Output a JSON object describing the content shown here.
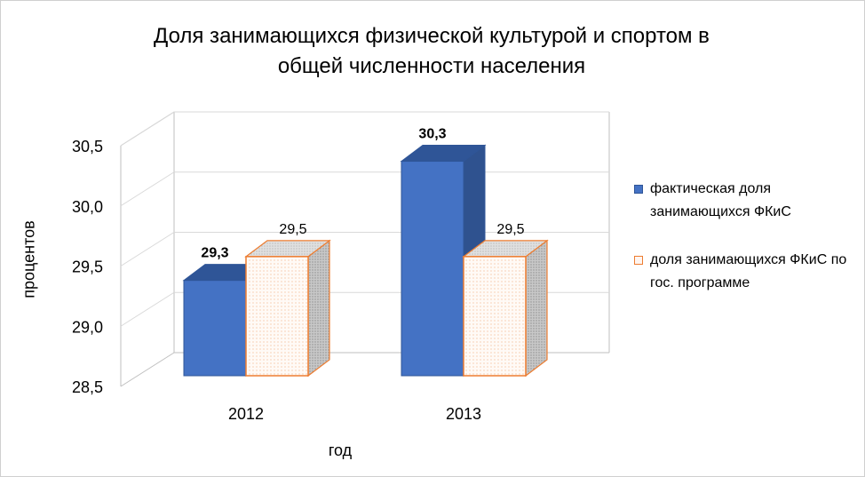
{
  "chart_data": {
    "type": "bar",
    "title": "Доля занимающихся физической культурой и спортом в\nобщей численности населения",
    "xlabel": "год",
    "ylabel": "процентов",
    "categories": [
      "2012",
      "2013"
    ],
    "ylim": [
      28.5,
      30.5
    ],
    "yticks": [
      "28,5",
      "29,0",
      "29,5",
      "30,0",
      "30,5"
    ],
    "grid": true,
    "legend_position": "right",
    "series": [
      {
        "name": "фактическая доля занимающихся ФКиС",
        "values": [
          29.3,
          30.3
        ],
        "labels": [
          "29,3",
          "30,3"
        ],
        "color": "#4472c4"
      },
      {
        "name": "доля занимающихся ФКиС по гос. программе",
        "values": [
          29.5,
          29.5
        ],
        "labels": [
          "29,5",
          "29,5"
        ],
        "color": "#ed7d31"
      }
    ]
  }
}
